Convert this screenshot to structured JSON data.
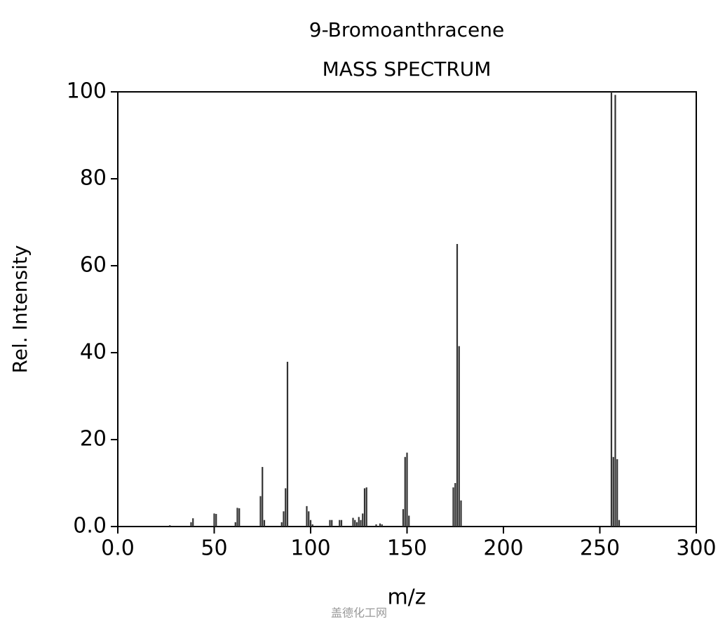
{
  "chart_data": {
    "type": "bar",
    "title": "9-Bromoanthracene",
    "subtitle": "MASS SPECTRUM",
    "x_label": "m/z",
    "y_label": "Rel. Intensity",
    "watermark": "盖德化工网",
    "color": "#333333",
    "x": [
      27,
      38,
      39,
      50,
      51,
      61,
      62,
      63,
      74,
      75,
      76,
      85,
      86,
      87,
      88,
      98,
      99,
      100,
      101,
      110,
      111,
      115,
      116,
      122,
      123,
      124,
      125,
      126,
      127,
      128,
      129,
      134,
      136,
      137,
      148,
      149,
      150,
      151,
      174,
      175,
      176,
      177,
      178,
      256,
      257,
      258,
      259,
      260
    ],
    "values": [
      0.3,
      1,
      1.9,
      3,
      2.9,
      1,
      4.3,
      4.2,
      7,
      13.7,
      1.5,
      1,
      3.5,
      8.8,
      37.9,
      4.7,
      3.5,
      1.5,
      0.5,
      1.5,
      1.5,
      1.5,
      1.5,
      2,
      1.5,
      1,
      2.2,
      1.5,
      3,
      8.8,
      9,
      0.5,
      0.7,
      0.5,
      4,
      16,
      17,
      2.5,
      9,
      10,
      65,
      41.5,
      6,
      100,
      16,
      99.3,
      15.5,
      1.5
    ],
    "xlim": [
      0,
      300
    ],
    "xticks": [
      {
        "value": 0,
        "label": "0.0"
      },
      50,
      100,
      150,
      200,
      250,
      300
    ],
    "ylim": [
      0,
      100
    ],
    "yticks": [
      {
        "value": 0,
        "label": "0.0"
      },
      20,
      40,
      60,
      80,
      100
    ]
  }
}
